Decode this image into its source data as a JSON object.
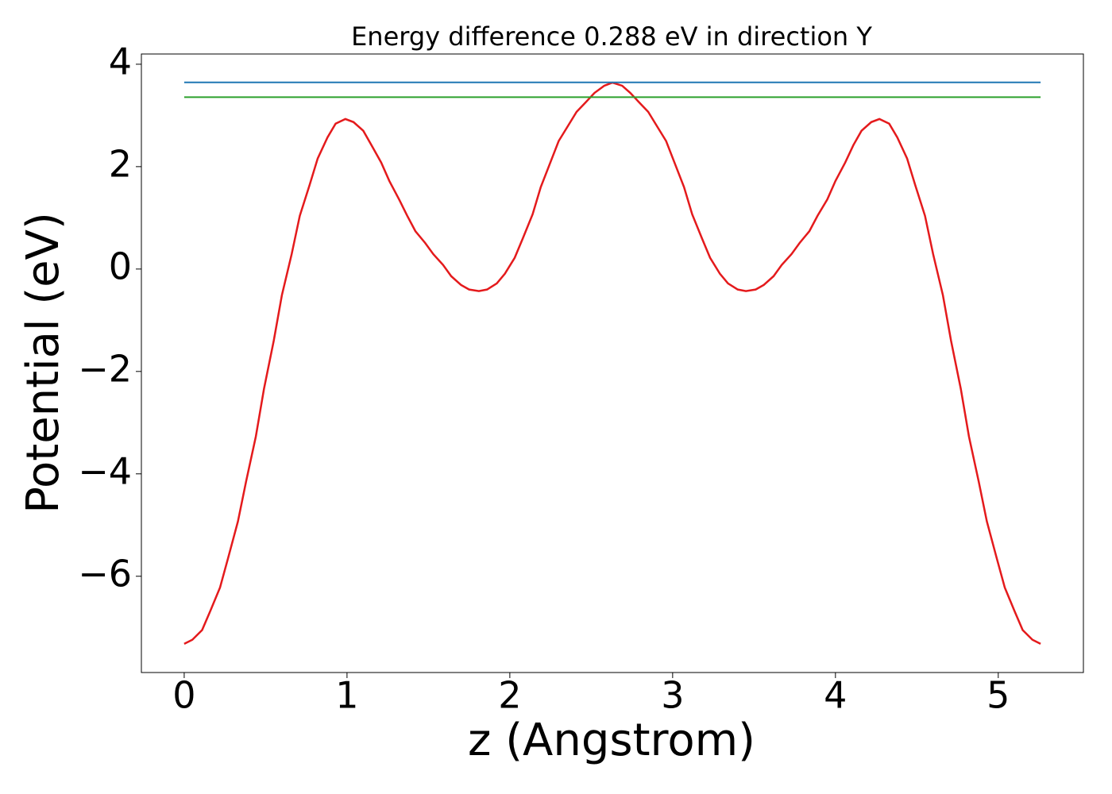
{
  "chart_data": {
    "type": "line",
    "title": "Energy difference 0.288 eV in direction Y",
    "x_label": "z (Angstrom)",
    "y_label": "Potential (eV)",
    "xlim": [
      -0.263,
      5.523
    ],
    "ylim": [
      -7.88,
      4.2
    ],
    "xticks": [
      0,
      1,
      2,
      3,
      4,
      5
    ],
    "yticks": [
      {
        "value": -6,
        "label": "−6"
      },
      {
        "value": -4,
        "label": "−4"
      },
      {
        "value": -2,
        "label": "−2"
      },
      0,
      2,
      4
    ],
    "grid": false,
    "series": [
      {
        "color": "#e41a1c",
        "x": [
          0,
          0.05,
          0.11,
          0.16,
          0.22,
          0.27,
          0.33,
          0.38,
          0.44,
          0.49,
          0.55,
          0.6,
          0.66,
          0.71,
          0.77,
          0.82,
          0.88,
          0.93,
          0.99,
          1.04,
          1.1,
          1.15,
          1.21,
          1.26,
          1.32,
          1.37,
          1.42,
          1.48,
          1.53,
          1.59,
          1.64,
          1.7,
          1.75,
          1.81,
          1.86,
          1.92,
          1.97,
          2.03,
          2.08,
          2.14,
          2.19,
          2.25,
          2.3,
          2.36,
          2.41,
          2.47,
          2.52,
          2.58,
          2.63,
          2.69,
          2.74,
          2.79,
          2.85,
          2.9,
          2.96,
          3.01,
          3.07,
          3.12,
          3.18,
          3.23,
          3.29,
          3.34,
          3.4,
          3.45,
          3.51,
          3.56,
          3.62,
          3.67,
          3.73,
          3.78,
          3.84,
          3.89,
          3.95,
          4.0,
          4.06,
          4.11,
          4.16,
          4.22,
          4.27,
          4.33,
          4.38,
          4.44,
          4.49,
          4.55,
          4.6,
          4.66,
          4.71,
          4.77,
          4.82,
          4.88,
          4.93,
          4.99,
          5.04,
          5.1,
          5.15,
          5.21,
          5.26
        ],
        "values": [
          -7.32,
          -7.24,
          -7.05,
          -6.68,
          -6.22,
          -5.64,
          -4.93,
          -4.15,
          -3.27,
          -2.34,
          -1.4,
          -0.51,
          0.29,
          1.04,
          1.64,
          2.16,
          2.57,
          2.84,
          2.93,
          2.87,
          2.7,
          2.42,
          2.08,
          1.72,
          1.36,
          1.04,
          0.74,
          0.51,
          0.29,
          0.08,
          -0.14,
          -0.31,
          -0.4,
          -0.43,
          -0.4,
          -0.28,
          -0.09,
          0.22,
          0.6,
          1.07,
          1.6,
          2.09,
          2.5,
          2.81,
          3.07,
          3.27,
          3.44,
          3.58,
          3.64,
          3.58,
          3.44,
          3.27,
          3.07,
          2.81,
          2.5,
          2.09,
          1.6,
          1.07,
          0.6,
          0.22,
          -0.09,
          -0.28,
          -0.4,
          -0.43,
          -0.4,
          -0.31,
          -0.14,
          0.08,
          0.29,
          0.51,
          0.74,
          1.04,
          1.36,
          1.72,
          2.08,
          2.42,
          2.7,
          2.87,
          2.93,
          2.84,
          2.57,
          2.16,
          1.64,
          1.04,
          0.29,
          -0.51,
          -1.4,
          -2.34,
          -3.27,
          -4.15,
          -4.93,
          -5.64,
          -6.22,
          -6.68,
          -7.05,
          -7.24,
          -7.32
        ]
      },
      {
        "color": "#1f77b4",
        "x": [
          0,
          5.26
        ],
        "values": [
          3.645,
          3.645
        ]
      },
      {
        "color": "#2ca02c",
        "x": [
          0,
          5.26
        ],
        "values": [
          3.357,
          3.357
        ]
      }
    ]
  }
}
